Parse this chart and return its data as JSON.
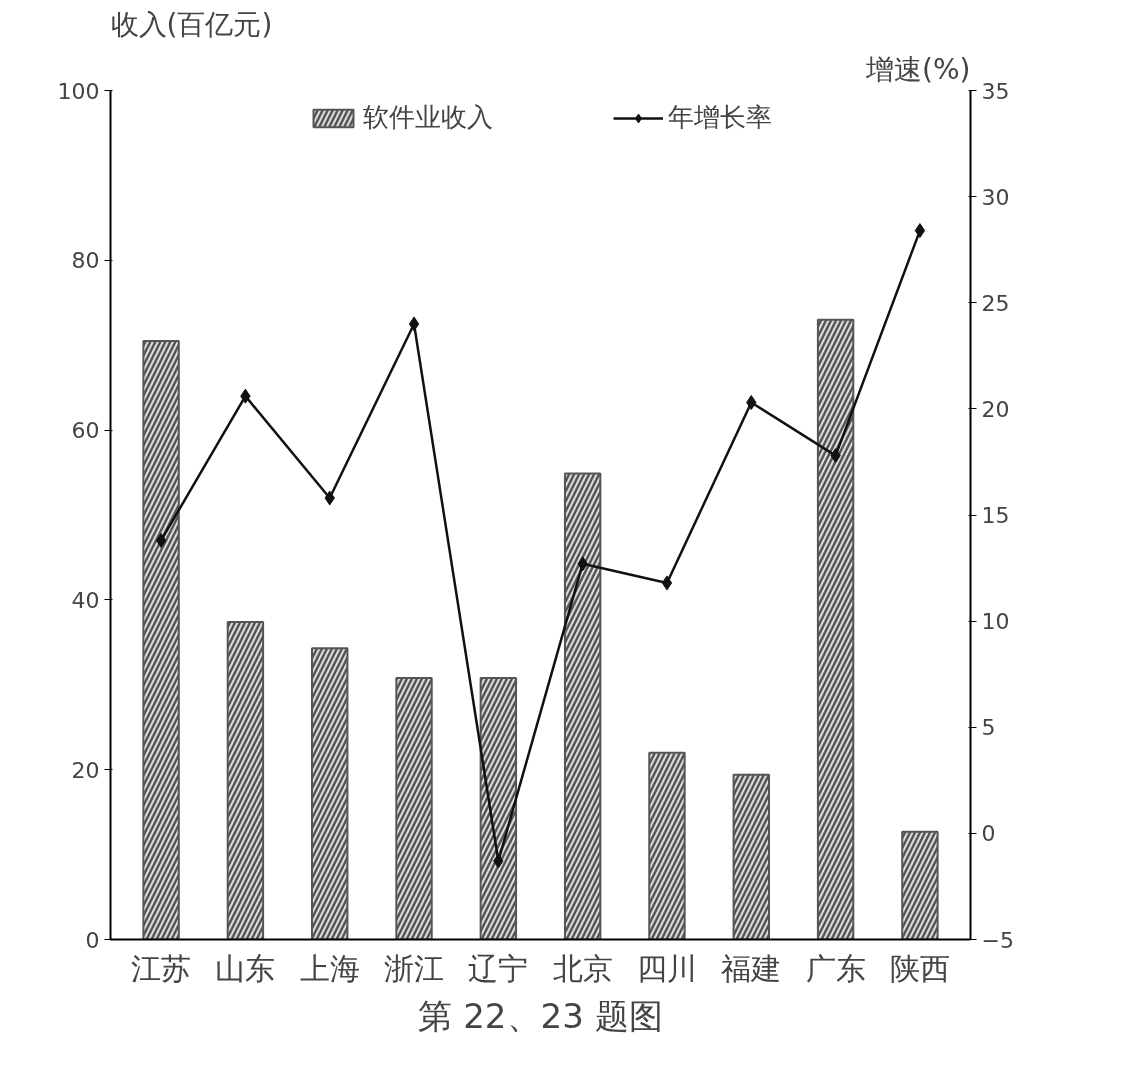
{
  "chart_data": {
    "type": "bar",
    "categories": [
      "江苏",
      "山东",
      "上海",
      "浙江",
      "辽宁",
      "北京",
      "四川",
      "福建",
      "广东",
      "陕西"
    ],
    "ylabel": "收入(百亿元)",
    "y2label": "增速(%)",
    "ylim": [
      0,
      100
    ],
    "yticks": [
      0,
      20,
      40,
      60,
      80,
      100
    ],
    "y2lim": [
      -5,
      35
    ],
    "y2ticks": [
      -5,
      0,
      5,
      10,
      15,
      20,
      25,
      30,
      35
    ],
    "series": [
      {
        "name": "软件业收入",
        "color": "#555555",
        "values": [
          70.5,
          37.4,
          34.3,
          30.8,
          30.8,
          54.9,
          22.0,
          19.4,
          73.0,
          12.7
        ]
      },
      {
        "name": "年增长率",
        "type": "line",
        "axis": "y2",
        "color": "#111111",
        "marker": "diamond",
        "values": [
          13.8,
          20.6,
          15.8,
          24.0,
          -1.3,
          12.7,
          11.8,
          20.3,
          17.8,
          28.4
        ]
      }
    ],
    "legend": "top",
    "grid": false,
    "annotations": [
      "第 22、23 题图"
    ]
  }
}
